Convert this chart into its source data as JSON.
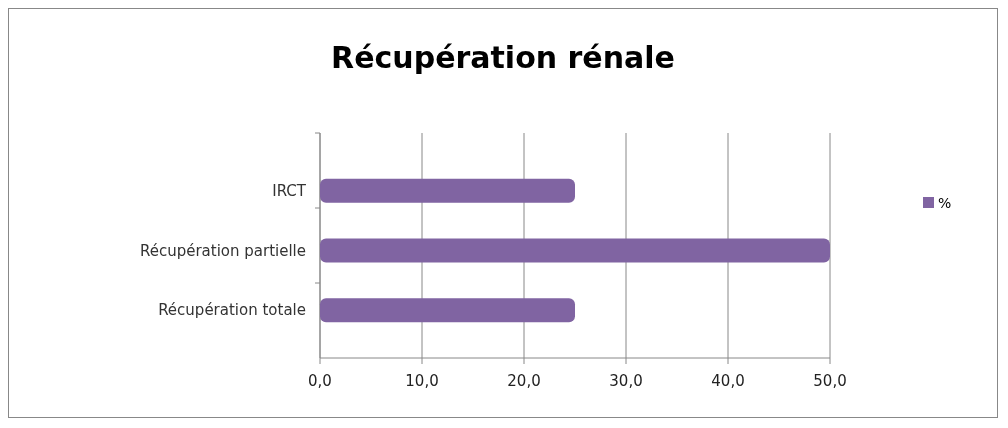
{
  "chart_data": {
    "type": "bar",
    "orientation": "horizontal",
    "title": "Récupération rénale",
    "categories": [
      "IRCT",
      "Récupération partielle",
      "Récupération totale"
    ],
    "series": [
      {
        "name": "%",
        "color": "#8064a2",
        "values": [
          25,
          50,
          25
        ]
      }
    ],
    "xlim": [
      0,
      50
    ],
    "xticks": [
      {
        "value": 0,
        "label": "0,0"
      },
      {
        "value": 10,
        "label": "10,0"
      },
      {
        "value": 20,
        "label": "20,0"
      },
      {
        "value": 30,
        "label": "30,0"
      },
      {
        "value": 40,
        "label": "40,0"
      },
      {
        "value": 50,
        "label": "50,0"
      }
    ],
    "grid": "x",
    "legend": "right"
  }
}
